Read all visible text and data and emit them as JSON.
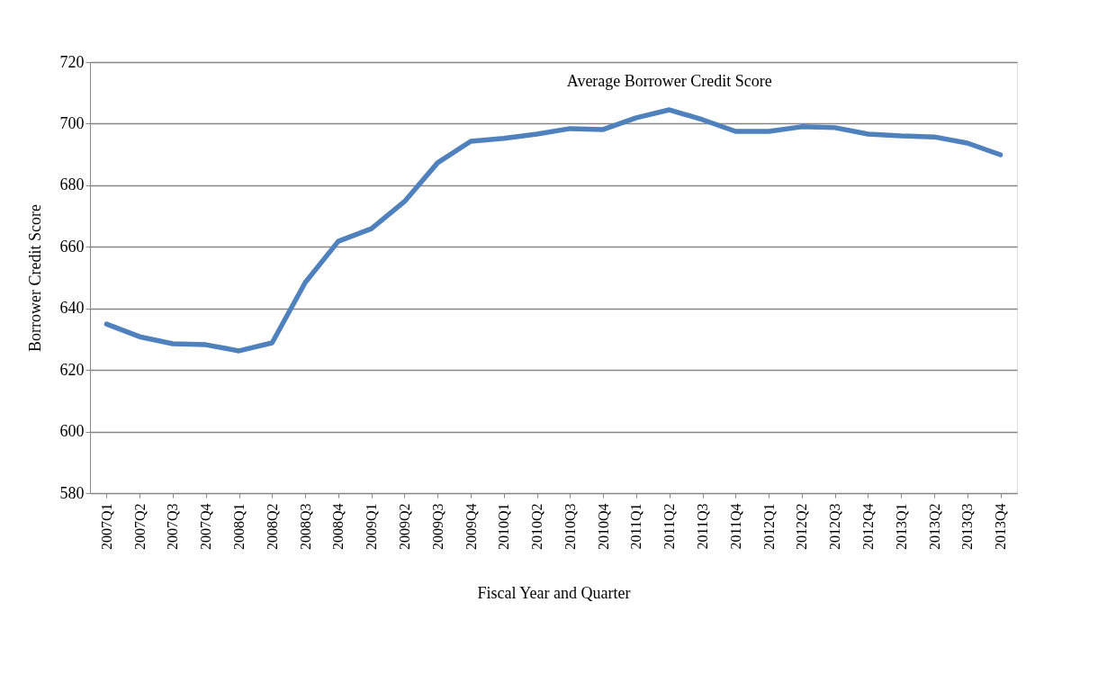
{
  "chart_data": {
    "type": "line",
    "xlabel": "Fiscal Year and Quarter",
    "ylabel": "Borrower Credit Score",
    "categories": [
      "2007Q1",
      "2007Q2",
      "2007Q3",
      "2007Q4",
      "2008Q1",
      "2008Q2",
      "2008Q3",
      "2008Q4",
      "2009Q1",
      "2009Q2",
      "2009Q3",
      "2009Q4",
      "2010Q1",
      "2010Q2",
      "2010Q3",
      "2010Q4",
      "2011Q1",
      "2011Q2",
      "2011Q3",
      "2011Q4",
      "2012Q1",
      "2012Q2",
      "2012Q3",
      "2012Q4",
      "2013Q1",
      "2013Q2",
      "2013Q3",
      "2013Q4"
    ],
    "series": [
      {
        "name": "Average Borrower Credit Score",
        "color": "#4f81bd",
        "values": [
          634.9,
          630.8,
          628.5,
          628.2,
          626.2,
          628.8,
          648.4,
          661.8,
          665.9,
          674.7,
          687.3,
          694.3,
          695.2,
          696.6,
          698.4,
          698.1,
          701.9,
          704.5,
          701.3,
          697.5,
          697.5,
          699,
          698.7,
          696.6,
          696,
          695.7,
          693.7,
          689.9
        ]
      }
    ],
    "ylim": [
      580,
      720
    ],
    "yticks": [
      580,
      600,
      620,
      640,
      660,
      680,
      700,
      720
    ],
    "grid": "y",
    "legend": false,
    "marker": "none",
    "line_style": "solid"
  }
}
